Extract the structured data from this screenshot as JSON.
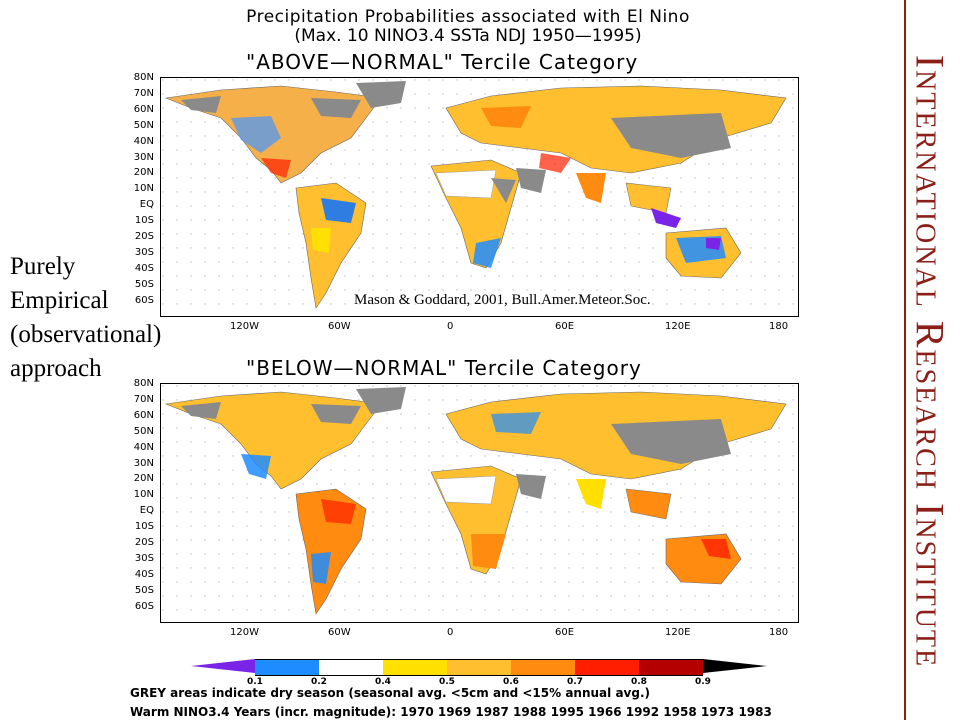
{
  "header": {
    "title_line1": "Precipitation Probabilities associated with El Nino",
    "title_line2": "(Max. 10 NINO3.4 SSTa NDJ 1950—1995)"
  },
  "maps": [
    {
      "category": "\"ABOVE—NORMAL\" Tercile Category"
    },
    {
      "category": "\"BELOW—NORMAL\" Tercile Category"
    }
  ],
  "lat_labels": [
    "80N",
    "70N",
    "60N",
    "50N",
    "40N",
    "30N",
    "20N",
    "10N",
    "EQ",
    "10S",
    "20S",
    "30S",
    "40S",
    "50S",
    "60S"
  ],
  "lon_labels": [
    "120W",
    "60W",
    "0",
    "60E",
    "120E",
    "180"
  ],
  "side_text": [
    "Purely",
    "Empirical",
    "(observational)",
    "approach"
  ],
  "citation": "Mason & Goddard, 2001, Bull.Amer.Meteor.Soc.",
  "legend": {
    "labels": [
      "0.1",
      "0.2",
      "0.4",
      "0.5",
      "0.6",
      "0.7",
      "0.8",
      "0.9"
    ],
    "colors": [
      "#7a24e8",
      "#1e8cff",
      "#ffffff",
      "#ffe000",
      "#ffbf2e",
      "#ff8c10",
      "#ff1f00",
      "#b50000",
      "#000000"
    ]
  },
  "notes": {
    "grey": "GREY areas indicate dry season (seasonal avg. <5cm and <15% annual avg.)",
    "years": "Warm NINO3.4 Years (incr. magnitude): 1970 1969 1987 1988 1995 1966 1992 1958 1973 1983"
  },
  "institute": "International Research Institute",
  "colors": {
    "brand": "#8b1f17",
    "grey_dry": "#8a8a8a"
  }
}
